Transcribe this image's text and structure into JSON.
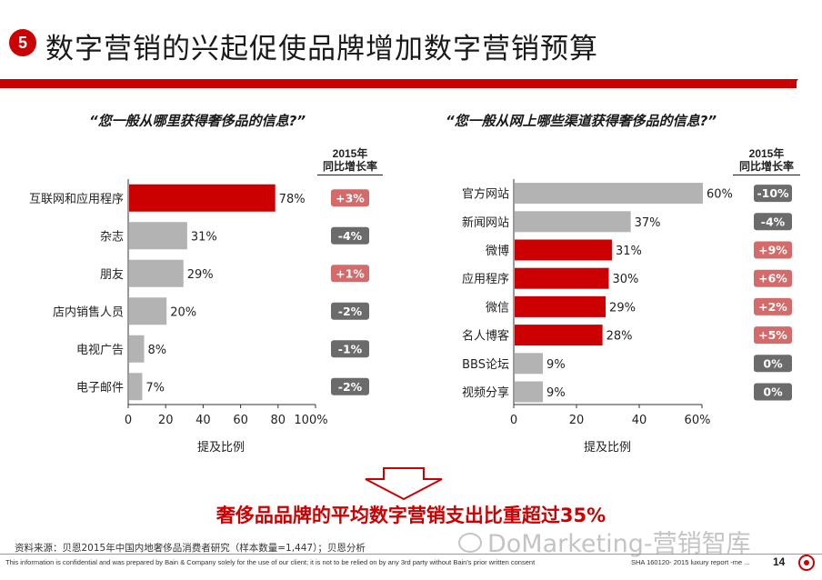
{
  "slide_number": "5",
  "title": "数字营销的兴起促使品牌增加数字营销预算",
  "colors": {
    "accent": "#cc0000",
    "gray_bar": "#b3b3b3",
    "badge_positive": "#d46a6a",
    "badge_negative": "#6b6b6b"
  },
  "chart_data": [
    {
      "type": "bar",
      "orientation": "horizontal",
      "title": "“您一般从哪里获得奢侈品的信息?”",
      "categories": [
        "互联网和应用程序",
        "杂志",
        "朋友",
        "店内销售人员",
        "电视广告",
        "电子邮件"
      ],
      "values": [
        78,
        31,
        29,
        20,
        8,
        7
      ],
      "value_labels": [
        "78%",
        "31%",
        "29%",
        "20%",
        "8%",
        "7%"
      ],
      "highlighted": [
        true,
        false,
        false,
        false,
        false,
        false
      ],
      "xlabel": "提及比例",
      "xlim": [
        0,
        100
      ],
      "xticks": [
        "0",
        "20",
        "40",
        "60",
        "80",
        "100%"
      ],
      "growth_header": [
        "2015年",
        "同比增长率"
      ],
      "growth": [
        "+3%",
        "-4%",
        "+1%",
        "-2%",
        "-1%",
        "-2%"
      ],
      "growth_positive": [
        true,
        false,
        true,
        false,
        false,
        false
      ]
    },
    {
      "type": "bar",
      "orientation": "horizontal",
      "title": "“您一般从网上哪些渠道获得奢侈品的信息?”",
      "categories": [
        "官方网站",
        "新闻网站",
        "微博",
        "应用程序",
        "微信",
        "名人博客",
        "BBS论坛",
        "视频分享"
      ],
      "values": [
        60,
        37,
        31,
        30,
        29,
        28,
        9,
        9
      ],
      "value_labels": [
        "60%",
        "37%",
        "31%",
        "30%",
        "29%",
        "28%",
        "9%",
        "9%"
      ],
      "highlighted": [
        false,
        false,
        true,
        true,
        true,
        true,
        false,
        false
      ],
      "xlabel": "提及比例",
      "xlim": [
        0,
        60
      ],
      "xticks": [
        "0",
        "20",
        "40",
        "60%"
      ],
      "growth_header": [
        "2015年",
        "同比增长率"
      ],
      "growth": [
        "-10%",
        "-4%",
        "+9%",
        "+6%",
        "+2%",
        "+5%",
        "0%",
        "0%"
      ],
      "growth_positive": [
        false,
        false,
        true,
        true,
        true,
        true,
        false,
        false
      ]
    }
  ],
  "conclusion": "奢侈品品牌的平均数字营销支出比重超过35%",
  "source": "资料来源：贝恩2015年中国内地奢侈品消费者研究（样本数量=1,447）；贝恩分析",
  "watermark": "DoMarketing-营销智库",
  "footer": {
    "disclaimer": "This information is confidential and was prepared by Bain & Company solely for the use of our client; it is not to be relied on by any 3rd party without Bain's prior written consent",
    "doc_id": "SHA    160120- 2015 luxury report -me ...",
    "page_number": "14"
  }
}
